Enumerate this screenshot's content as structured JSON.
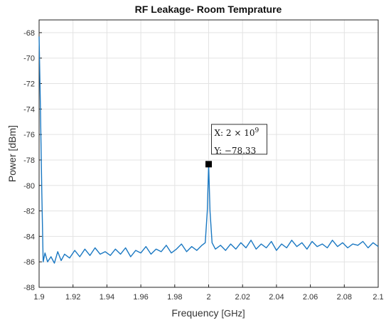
{
  "chart_data": {
    "type": "line",
    "title": "RF Leakage- Room Temprature",
    "xlabel": "Frequency",
    "xunit": "[GHz]",
    "ylabel": "Power [dBm]",
    "xlim": [
      1.9,
      2.1
    ],
    "ylim": [
      -88,
      -67
    ],
    "xticks": [
      "1.9",
      "1.92",
      "1.94",
      "1.96",
      "1.98",
      "2",
      "2.02",
      "2.04",
      "2.06",
      "2.08",
      "2.1"
    ],
    "yticks": [
      "-68",
      "-70",
      "-72",
      "-74",
      "-76",
      "-78",
      "-80",
      "-82",
      "-84",
      "-86",
      "-88"
    ],
    "grid": true,
    "line_color": "#1a78c2",
    "series": [
      {
        "x": [
          1.9,
          1.9008,
          1.9016,
          1.9024,
          1.9035,
          1.905,
          1.907,
          1.909,
          1.911,
          1.913,
          1.915,
          1.918,
          1.921,
          1.924,
          1.927,
          1.93,
          1.933,
          1.936,
          1.939,
          1.942,
          1.945,
          1.948,
          1.951,
          1.954,
          1.957,
          1.96,
          1.963,
          1.966,
          1.969,
          1.972,
          1.975,
          1.978,
          1.981,
          1.984,
          1.987,
          1.99,
          1.993,
          1.996,
          1.998,
          1.9992,
          2.0,
          2.0008,
          2.002,
          2.004,
          2.007,
          2.01,
          2.013,
          2.016,
          2.019,
          2.022,
          2.025,
          2.028,
          2.031,
          2.034,
          2.037,
          2.04,
          2.043,
          2.046,
          2.049,
          2.052,
          2.055,
          2.058,
          2.061,
          2.064,
          2.067,
          2.07,
          2.073,
          2.076,
          2.079,
          2.082,
          2.085,
          2.088,
          2.091,
          2.094,
          2.097,
          2.1
        ],
        "y": [
          -68.3,
          -74.0,
          -80.5,
          -86.0,
          -85.3,
          -86.0,
          -85.6,
          -86.1,
          -85.2,
          -85.9,
          -85.4,
          -85.7,
          -85.1,
          -85.6,
          -85.0,
          -85.5,
          -84.9,
          -85.4,
          -85.2,
          -85.5,
          -85.0,
          -85.4,
          -84.9,
          -85.6,
          -85.1,
          -85.3,
          -84.8,
          -85.4,
          -85.0,
          -85.2,
          -84.7,
          -85.3,
          -85.0,
          -84.6,
          -85.2,
          -84.8,
          -85.1,
          -84.7,
          -84.5,
          -82.0,
          -78.33,
          -82.0,
          -84.5,
          -85.0,
          -84.7,
          -85.1,
          -84.6,
          -85.0,
          -84.5,
          -84.9,
          -84.3,
          -85.0,
          -84.6,
          -84.9,
          -84.4,
          -85.1,
          -84.6,
          -84.9,
          -84.3,
          -84.8,
          -84.5,
          -85.0,
          -84.4,
          -84.8,
          -84.6,
          -84.9,
          -84.3,
          -84.8,
          -84.5,
          -84.9,
          -84.6,
          -84.7,
          -84.4,
          -84.9,
          -84.5,
          -84.8
        ]
      }
    ],
    "datatip": {
      "x": 2.0,
      "y": -78.33,
      "x_label": "X: 2 × 10",
      "x_exp": "9",
      "y_label": "Y: −78.33"
    }
  }
}
